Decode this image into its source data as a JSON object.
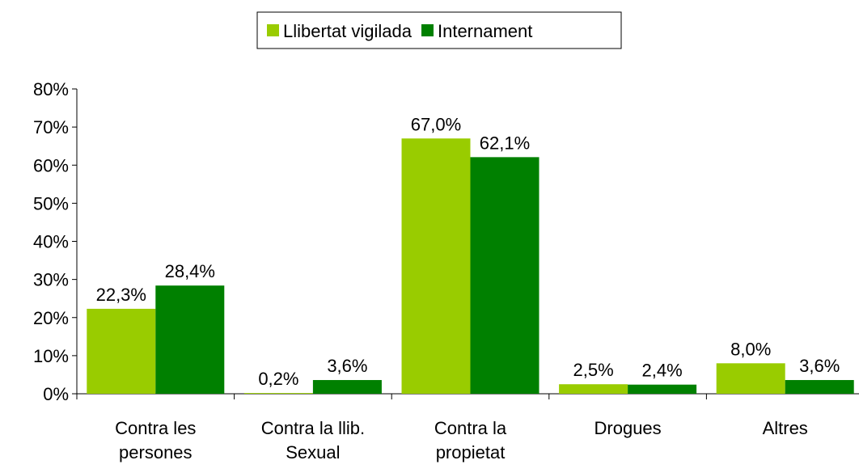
{
  "chart_data": {
    "type": "bar",
    "categories": [
      [
        "Contra les",
        "persones"
      ],
      [
        "Contra la llib.",
        "Sexual"
      ],
      [
        "Contra la",
        "propietat"
      ],
      [
        "Drogues"
      ],
      [
        "Altres"
      ]
    ],
    "series": [
      {
        "name": "Llibertat vigilada",
        "color": "#99cc00",
        "values": [
          22.3,
          0.2,
          67.0,
          2.5,
          8.0
        ],
        "value_labels": [
          "22,3%",
          "0,2%",
          "67,0%",
          "2,5%",
          "8,0%"
        ]
      },
      {
        "name": "Internament",
        "color": "#008000",
        "values": [
          28.4,
          3.6,
          62.1,
          2.4,
          3.6
        ],
        "value_labels": [
          "28,4%",
          "3,6%",
          "62,1%",
          "2,4%",
          "3,6%"
        ]
      }
    ],
    "ylim": [
      0,
      80
    ],
    "yticks": [
      {
        "value": 0,
        "label": "0%"
      },
      {
        "value": 10,
        "label": "10%"
      },
      {
        "value": 20,
        "label": "20%"
      },
      {
        "value": 30,
        "label": "30%"
      },
      {
        "value": 40,
        "label": "40%"
      },
      {
        "value": 50,
        "label": "50%"
      },
      {
        "value": 60,
        "label": "60%"
      },
      {
        "value": 70,
        "label": "70%"
      },
      {
        "value": 80,
        "label": "80%"
      }
    ],
    "legend": "top"
  }
}
